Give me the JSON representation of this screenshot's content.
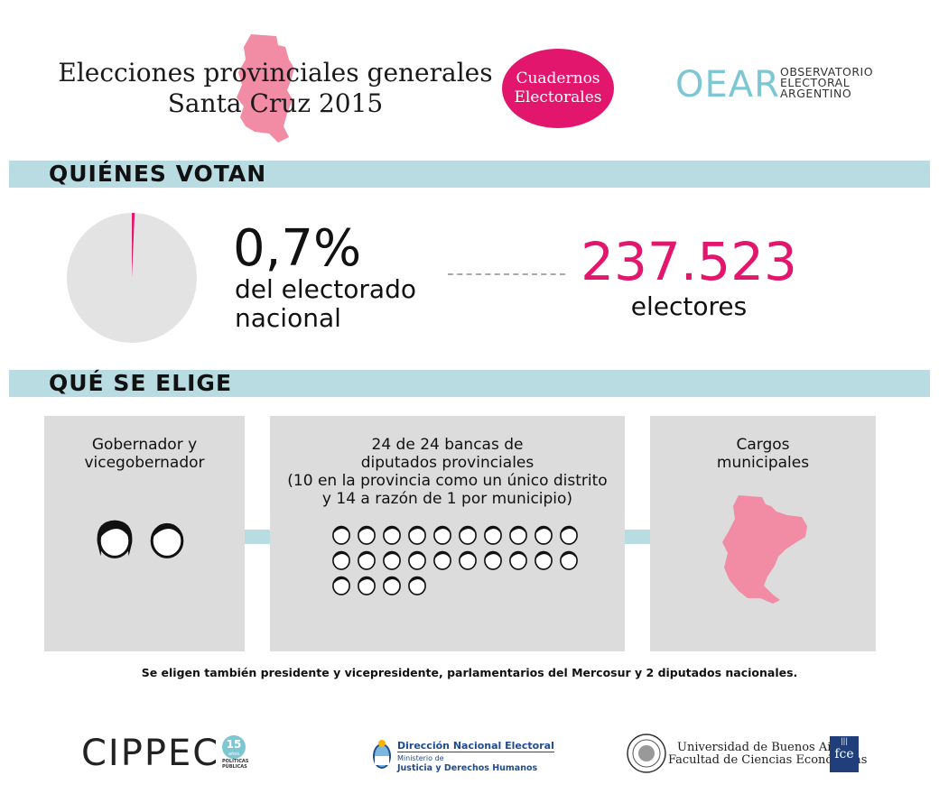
{
  "header": {
    "title_line1": "Elecciones provinciales generales",
    "title_line2": "Santa Cruz 2015",
    "badge_line1": "Cuadernos",
    "badge_line2": "Electorales",
    "oear_mark": "OEAR",
    "oear_line1": "OBSERVATORIO",
    "oear_line2": "ELECTORAL",
    "oear_line3": "ARGENTINO"
  },
  "section1": {
    "heading": "QUIÉNES VOTAN",
    "percent": "0,7%",
    "percent_value": 0.7,
    "percent_label_line1": "del electorado",
    "percent_label_line2": "nacional",
    "electors_number": "237.523",
    "electors_label": "electores"
  },
  "section2": {
    "heading": "QUÉ SE ELIGE",
    "box1_line1": "Gobernador y",
    "box1_line2": "vicegobernador",
    "box1_faces": 2,
    "box2_line1": "24 de 24 bancas de",
    "box2_line2": "diputados provinciales",
    "box2_line3": "(10 en la provincia como un único distrito",
    "box2_line4": "y 14 a razón de 1 por municipio)",
    "box2_faces": 24,
    "box3_line1": "Cargos",
    "box3_line2": "municipales",
    "note": "Se eligen también presidente y vicepresidente, parlamentarios del Mercosur y 2 diputados nacionales."
  },
  "footer": {
    "cippec": "CIPPEC",
    "cippec_badge": "15",
    "cippec_badge_sub": "años",
    "cippec_sub1": "POLÍTICAS",
    "cippec_sub2": "PÚBLICAS",
    "dne_title": "Dirección Nacional Electoral",
    "dne_sub1": "Ministerio de",
    "dne_sub2": "Justicia y Derechos Humanos",
    "uba_line1": "Universidad de Buenos Aires",
    "uba_line2": "Facultad de Ciencias Económicas",
    "fce_mark": "fce"
  },
  "colors": {
    "accent_pink": "#e2166d",
    "map_pink": "#f28ba4",
    "bar_blue": "#b9dce2",
    "box_gray": "#dcdcdc",
    "pie_gray": "#e3e3e3"
  }
}
